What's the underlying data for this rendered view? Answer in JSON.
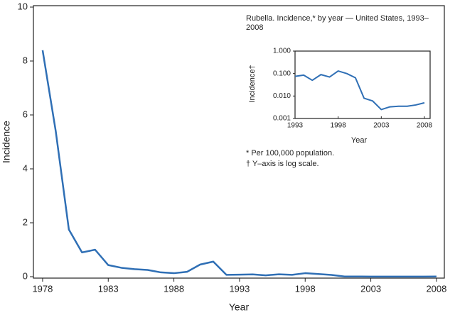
{
  "chart_data": [
    {
      "type": "line",
      "x_label": "Year",
      "y_label": "Incidence",
      "x": [
        1978,
        1979,
        1980,
        1981,
        1982,
        1983,
        1984,
        1985,
        1986,
        1987,
        1988,
        1989,
        1990,
        1991,
        1992,
        1993,
        1994,
        1995,
        1996,
        1997,
        1998,
        1999,
        2000,
        2001,
        2002,
        2003,
        2004,
        2005,
        2006,
        2007,
        2008
      ],
      "values": [
        8.4,
        5.4,
        1.75,
        0.9,
        1.0,
        0.43,
        0.33,
        0.28,
        0.25,
        0.16,
        0.13,
        0.18,
        0.45,
        0.56,
        0.07,
        0.075,
        0.085,
        0.05,
        0.09,
        0.07,
        0.13,
        0.1,
        0.065,
        0.008,
        0.006,
        0.0025,
        0.0033,
        0.0035,
        0.0035,
        0.004,
        0.005
      ],
      "color": "#2f6fb5",
      "xlim": [
        1977.3,
        2008.6
      ],
      "xticks": [
        1978,
        1983,
        1988,
        1993,
        1998,
        2003,
        2008
      ],
      "ylim": [
        0,
        10
      ],
      "yticks": [
        0,
        2,
        4,
        6,
        8,
        10
      ],
      "grid": false
    },
    {
      "type": "line",
      "title": "Rubella. Incidence,* by year — United States, 1993–2008",
      "x_label": "Year",
      "y_label": "Incidence†",
      "x": [
        1993,
        1994,
        1995,
        1996,
        1997,
        1998,
        1999,
        2000,
        2001,
        2002,
        2003,
        2004,
        2005,
        2006,
        2007,
        2008
      ],
      "values": [
        0.075,
        0.085,
        0.05,
        0.09,
        0.07,
        0.13,
        0.1,
        0.065,
        0.008,
        0.006,
        0.0025,
        0.0033,
        0.0035,
        0.0035,
        0.004,
        0.005
      ],
      "color": "#2f6fb5",
      "log_scale": true,
      "xlim": [
        1993,
        2008.66
      ],
      "xticks": [
        1993,
        1998,
        2003,
        2008
      ],
      "ylim": [
        0.001,
        1
      ],
      "yticks": [
        {
          "value": 1,
          "label": "1.000"
        },
        {
          "value": 0.1,
          "label": "0.100"
        },
        {
          "value": 0.01,
          "label": "0.010"
        },
        {
          "value": 0.001,
          "label": "0.001"
        }
      ],
      "notes": [
        "* Per 100,000 population.",
        "† Y–axis is log scale."
      ],
      "grid": false
    }
  ]
}
